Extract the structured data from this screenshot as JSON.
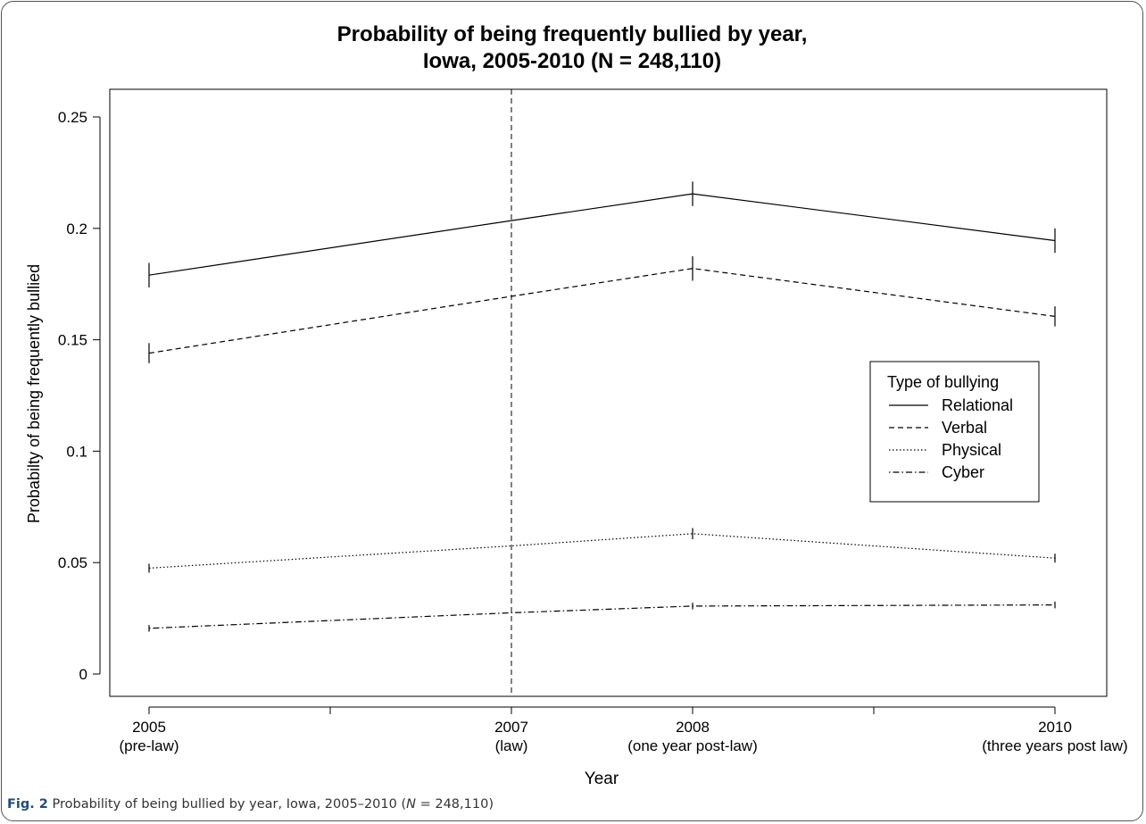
{
  "chart_data": {
    "type": "line",
    "title_line1": "Probability of being frequently bullied by year,",
    "title_line2": "Iowa, 2005-2010 (N = 248,110)",
    "xlabel": "Year",
    "ylabel": "Probabilty of being frequently bullied",
    "ylim": [
      0,
      0.25
    ],
    "y_ticks": [
      "0",
      "0.05",
      "0.1",
      "0.15",
      "0.2",
      "0.25"
    ],
    "x_ticks": [
      {
        "value": 2005,
        "year": "2005",
        "note": "(pre-law)"
      },
      {
        "value": 2006
      },
      {
        "value": 2007,
        "year": "2007",
        "note": "(law)"
      },
      {
        "value": 2008,
        "year": "2008",
        "note": "(one year post-law)"
      },
      {
        "value": 2009
      },
      {
        "value": 2010,
        "year": "2010",
        "note": "(three years post law)"
      }
    ],
    "xlim": [
      2005,
      2010
    ],
    "reference_line": {
      "x": 2007,
      "style": "dashed"
    },
    "legend": {
      "title": "Type of bullying",
      "position": "right"
    },
    "series": [
      {
        "name": "Relational",
        "style": "solid",
        "x": [
          2005,
          2007,
          2008,
          2010
        ],
        "values": [
          0.179,
          0.2035,
          0.2155,
          0.1945
        ],
        "ci": [
          0.0055,
          0,
          0.0055,
          0.0055
        ]
      },
      {
        "name": "Verbal",
        "style": "dashed",
        "x": [
          2005,
          2007,
          2008,
          2010
        ],
        "values": [
          0.144,
          0.1695,
          0.182,
          0.1605
        ],
        "ci": [
          0.0045,
          0,
          0.0055,
          0.0045
        ]
      },
      {
        "name": "Physical",
        "style": "dotted",
        "x": [
          2005,
          2007,
          2008,
          2010
        ],
        "values": [
          0.0475,
          0.0575,
          0.063,
          0.052
        ],
        "ci": [
          0.002,
          0,
          0.0025,
          0.002
        ]
      },
      {
        "name": "Cyber",
        "style": "dotdash",
        "x": [
          2005,
          2007,
          2008,
          2010
        ],
        "values": [
          0.0205,
          0.0275,
          0.0305,
          0.031
        ],
        "ci": [
          0.0015,
          0,
          0.0015,
          0.0015
        ]
      }
    ]
  },
  "caption": {
    "label": "Fig. 2",
    "text_before": " Probability of being bullied by year, Iowa, 2005–2010 (",
    "n_symbol": "N",
    "text_after": " = 248,110)"
  },
  "colors": {
    "line": "#000000",
    "frame": "#555555",
    "caption_label": "#1f4e79"
  }
}
